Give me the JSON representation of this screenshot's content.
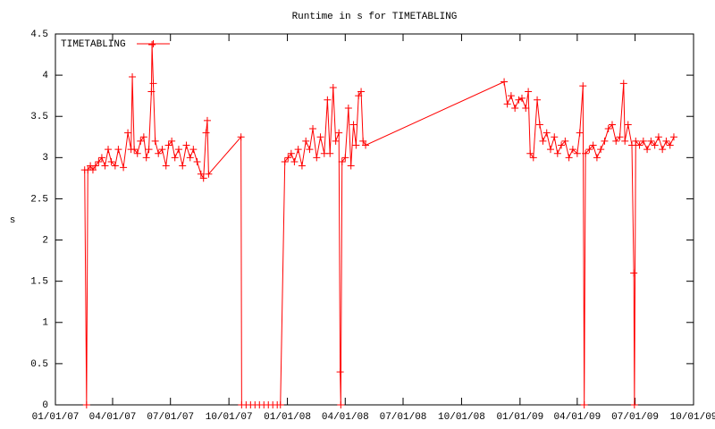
{
  "chart_data": {
    "type": "line",
    "title": "Runtime in s for TIMETABLING",
    "ylabel": "s",
    "legend": "top-left",
    "grid": false,
    "markers": "plus",
    "xlim": [
      "2007-01-01",
      "2009-10-01"
    ],
    "xticks": [
      {
        "value": "2007-01-01",
        "label": "01/01/07"
      },
      {
        "value": "2007-04-01",
        "label": "04/01/07"
      },
      {
        "value": "2007-07-01",
        "label": "07/01/07"
      },
      {
        "value": "2007-10-01",
        "label": "10/01/07"
      },
      {
        "value": "2008-01-01",
        "label": "01/01/08"
      },
      {
        "value": "2008-04-01",
        "label": "04/01/08"
      },
      {
        "value": "2008-07-01",
        "label": "07/01/08"
      },
      {
        "value": "2008-10-01",
        "label": "10/01/08"
      },
      {
        "value": "2009-01-01",
        "label": "01/01/09"
      },
      {
        "value": "2009-04-01",
        "label": "04/01/09"
      },
      {
        "value": "2009-07-01",
        "label": "07/01/09"
      },
      {
        "value": "2009-10-01",
        "label": "10/01/09"
      }
    ],
    "ylim": [
      0,
      4.5
    ],
    "yticks": [
      0,
      0.5,
      1,
      1.5,
      2,
      2.5,
      3,
      3.5,
      4,
      4.5
    ],
    "series": [
      {
        "name": "TIMETABLING",
        "color": "#ff0000",
        "x": [
          "2007-02-16",
          "2007-02-19",
          "2007-02-21",
          "2007-02-25",
          "2007-03-01",
          "2007-03-05",
          "2007-03-10",
          "2007-03-15",
          "2007-03-20",
          "2007-03-25",
          "2007-03-30",
          "2007-04-05",
          "2007-04-10",
          "2007-04-18",
          "2007-04-25",
          "2007-04-30",
          "2007-05-02",
          "2007-05-05",
          "2007-05-10",
          "2007-05-15",
          "2007-05-20",
          "2007-05-24",
          "2007-05-28",
          "2007-06-01",
          "2007-06-02",
          "2007-06-04",
          "2007-06-07",
          "2007-06-12",
          "2007-06-18",
          "2007-06-24",
          "2007-06-28",
          "2007-07-03",
          "2007-07-08",
          "2007-07-14",
          "2007-07-20",
          "2007-07-26",
          "2007-08-01",
          "2007-08-06",
          "2007-08-12",
          "2007-08-18",
          "2007-08-22",
          "2007-08-26",
          "2007-08-28",
          "2007-08-30",
          "2007-10-20",
          "2007-10-21",
          "2007-10-28",
          "2007-11-04",
          "2007-11-11",
          "2007-11-18",
          "2007-11-25",
          "2007-12-02",
          "2007-12-09",
          "2007-12-16",
          "2007-12-21",
          "2007-12-28",
          "2008-01-02",
          "2008-01-07",
          "2008-01-12",
          "2008-01-18",
          "2008-01-24",
          "2008-01-30",
          "2008-02-05",
          "2008-02-10",
          "2008-02-16",
          "2008-02-22",
          "2008-02-28",
          "2008-03-04",
          "2008-03-08",
          "2008-03-13",
          "2008-03-17",
          "2008-03-22",
          "2008-03-24",
          "2008-03-25",
          "2008-03-27",
          "2008-04-01",
          "2008-04-06",
          "2008-04-10",
          "2008-04-14",
          "2008-04-18",
          "2008-04-22",
          "2008-04-26",
          "2008-04-29",
          "2008-05-03",
          "2008-12-07",
          "2008-12-12",
          "2008-12-18",
          "2008-12-24",
          "2008-12-30",
          "2009-01-04",
          "2009-01-10",
          "2009-01-14",
          "2009-01-17",
          "2009-01-22",
          "2009-01-28",
          "2009-02-01",
          "2009-02-06",
          "2009-02-12",
          "2009-02-18",
          "2009-02-24",
          "2009-03-01",
          "2009-03-07",
          "2009-03-13",
          "2009-03-19",
          "2009-03-25",
          "2009-04-01",
          "2009-04-05",
          "2009-04-10",
          "2009-04-12",
          "2009-04-14",
          "2009-04-20",
          "2009-04-26",
          "2009-05-02",
          "2009-05-08",
          "2009-05-14",
          "2009-05-20",
          "2009-05-26",
          "2009-06-01",
          "2009-06-07",
          "2009-06-13",
          "2009-06-15",
          "2009-06-20",
          "2009-06-26",
          "2009-06-29",
          "2009-06-30",
          "2009-07-02",
          "2009-07-08",
          "2009-07-14",
          "2009-07-20",
          "2009-07-26",
          "2009-08-01",
          "2009-08-07",
          "2009-08-13",
          "2009-08-19",
          "2009-08-25",
          "2009-08-31"
        ],
        "values": [
          2.85,
          0,
          2.85,
          2.9,
          2.85,
          2.9,
          2.95,
          3.0,
          2.9,
          3.1,
          2.95,
          2.9,
          3.1,
          2.88,
          3.3,
          3.1,
          3.98,
          3.1,
          3.05,
          3.2,
          3.25,
          3.0,
          3.1,
          3.8,
          4.37,
          3.9,
          3.2,
          3.05,
          3.1,
          2.9,
          3.15,
          3.2,
          3.0,
          3.1,
          2.9,
          3.15,
          3.0,
          3.1,
          2.95,
          2.8,
          2.75,
          3.3,
          3.45,
          2.8,
          3.25,
          0,
          0,
          0,
          0,
          0,
          0,
          0,
          0,
          0,
          0,
          2.95,
          3.0,
          3.05,
          2.95,
          3.1,
          2.9,
          3.2,
          3.1,
          3.35,
          3.0,
          3.25,
          3.05,
          3.7,
          3.05,
          3.85,
          3.2,
          3.3,
          0.4,
          0,
          2.95,
          3.0,
          3.6,
          2.9,
          3.4,
          3.15,
          3.75,
          3.8,
          3.2,
          3.15,
          3.92,
          3.65,
          3.75,
          3.6,
          3.7,
          3.72,
          3.6,
          3.8,
          3.05,
          3.0,
          3.7,
          3.4,
          3.2,
          3.3,
          3.1,
          3.25,
          3.05,
          3.15,
          3.2,
          3.0,
          3.1,
          3.05,
          3.3,
          3.87,
          0,
          3.05,
          3.1,
          3.15,
          3.0,
          3.1,
          3.2,
          3.35,
          3.4,
          3.2,
          3.25,
          3.9,
          3.2,
          3.4,
          3.15,
          1.6,
          0,
          3.2,
          3.15,
          3.2,
          3.1,
          3.2,
          3.15,
          3.25,
          3.1,
          3.2,
          3.15,
          3.25
        ]
      }
    ]
  }
}
